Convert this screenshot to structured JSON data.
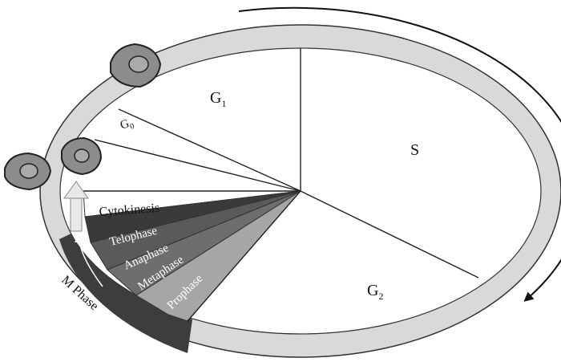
{
  "labels": {
    "g1": "G",
    "g1_sub": "1",
    "g0": "G",
    "g0_sub": "0",
    "s": "S",
    "g2": "G",
    "g2_sub": "2",
    "cytokinesis": "Cytokinesis",
    "telophase": "Telophase",
    "anaphase": "Anaphase",
    "metaphase": "Metaphase",
    "prophase": "Prophase",
    "m_phase": "M Phase"
  },
  "colors": {
    "ring": "#d9d9d9",
    "outline": "#333333",
    "telophase": "#3a3a3a",
    "anaphase": "#5a5a5a",
    "metaphase": "#6e6e6e",
    "prophase": "#a6a6a6",
    "m_band": "#3d3d3d",
    "cell": "#8c8c8c"
  },
  "icons": [
    "cell-icon",
    "cycle-arrow-icon",
    "division-arrow-icon"
  ]
}
